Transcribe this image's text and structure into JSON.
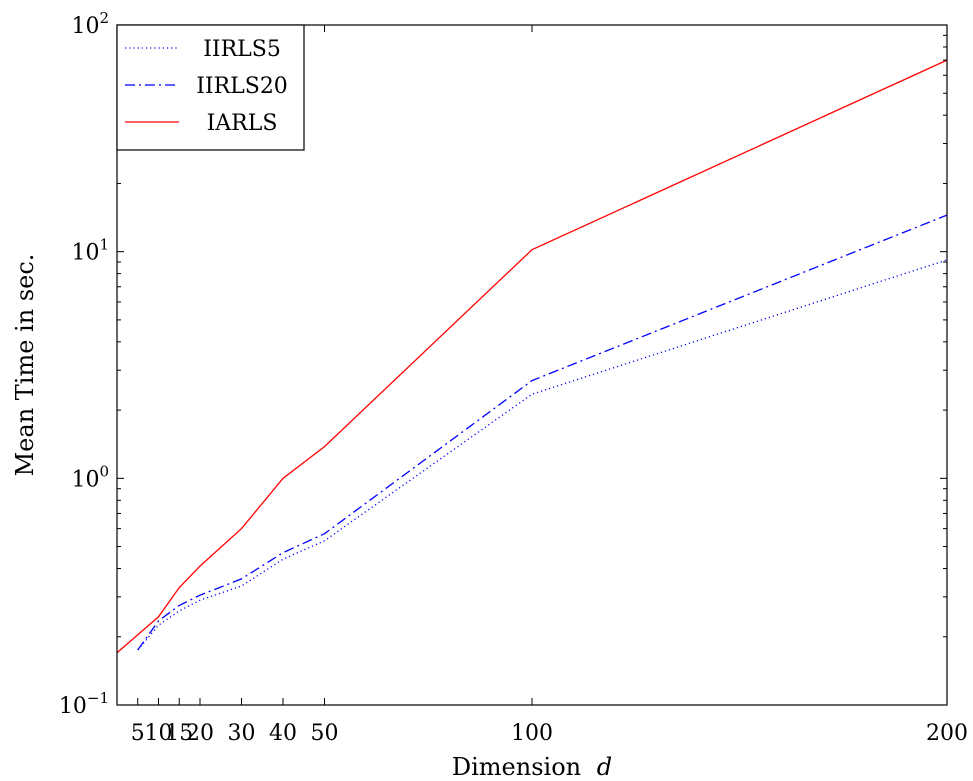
{
  "chart_data": {
    "type": "line",
    "title": "",
    "xlabel": "Dimension",
    "xlabel_var": "d",
    "ylabel": "Mean Time in sec.",
    "x_scale": "linear",
    "y_scale": "log",
    "xlim": [
      0,
      200
    ],
    "ylim": [
      0.1,
      100
    ],
    "x_ticks": [
      5,
      10,
      15,
      20,
      30,
      40,
      50,
      100,
      200
    ],
    "x_tick_labels": [
      "5",
      "10",
      "15",
      "20",
      "30",
      "40",
      "50",
      "100",
      "200"
    ],
    "y_ticks": [
      0.1,
      1,
      10,
      100
    ],
    "y_tick_labels": [
      {
        "base": "10",
        "exp": "−1"
      },
      {
        "base": "10",
        "exp": "0"
      },
      {
        "base": "10",
        "exp": "1"
      },
      {
        "base": "10",
        "exp": "2"
      }
    ],
    "grid": false,
    "legend_position": "top-left",
    "series": [
      {
        "name": "IIRLS5",
        "color": "#0000ff",
        "style": "dotted",
        "x": [
          5,
          10,
          15,
          20,
          30,
          40,
          50,
          100,
          200
        ],
        "y": [
          0.175,
          0.225,
          0.26,
          0.29,
          0.335,
          0.44,
          0.53,
          2.35,
          9.2
        ]
      },
      {
        "name": "IIRLS20",
        "color": "#0000ff",
        "style": "dashdot",
        "x": [
          5,
          10,
          15,
          20,
          30,
          40,
          50,
          100,
          200
        ],
        "y": [
          0.175,
          0.235,
          0.275,
          0.305,
          0.36,
          0.47,
          0.57,
          2.7,
          14.5
        ]
      },
      {
        "name": "IARLS",
        "color": "#ff0000",
        "style": "solid",
        "x": [
          0,
          10,
          15,
          20,
          30,
          40,
          50,
          100,
          200
        ],
        "y": [
          0.17,
          0.245,
          0.33,
          0.41,
          0.6,
          1.0,
          1.38,
          10.2,
          70
        ]
      }
    ]
  }
}
